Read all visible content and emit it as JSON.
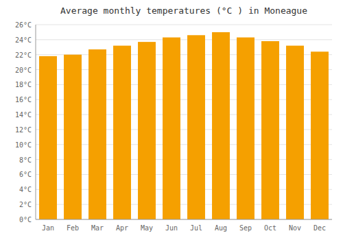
{
  "chart_data": {
    "type": "bar",
    "title": "Average monthly temperatures (°C ) in Moneague",
    "categories": [
      "Jan",
      "Feb",
      "Mar",
      "Apr",
      "May",
      "Jun",
      "Jul",
      "Aug",
      "Sep",
      "Oct",
      "Nov",
      "Dec"
    ],
    "values": [
      21.8,
      22.0,
      22.7,
      23.2,
      23.7,
      24.3,
      24.6,
      25.0,
      24.3,
      23.8,
      23.2,
      22.4
    ],
    "color": "#F5A000",
    "ylim": [
      0,
      26
    ],
    "yticks": [
      {
        "value": 0,
        "label": "0°C"
      },
      {
        "value": 2,
        "label": "2°C"
      },
      {
        "value": 4,
        "label": "4°C"
      },
      {
        "value": 6,
        "label": "6°C"
      },
      {
        "value": 8,
        "label": "8°C"
      },
      {
        "value": 10,
        "label": "10°C"
      },
      {
        "value": 12,
        "label": "12°C"
      },
      {
        "value": 14,
        "label": "14°C"
      },
      {
        "value": 16,
        "label": "16°C"
      },
      {
        "value": 18,
        "label": "18°C"
      },
      {
        "value": 20,
        "label": "20°C"
      },
      {
        "value": 22,
        "label": "22°C"
      },
      {
        "value": 24,
        "label": "24°C"
      },
      {
        "value": 26,
        "label": "26°C"
      }
    ],
    "grid": true
  }
}
